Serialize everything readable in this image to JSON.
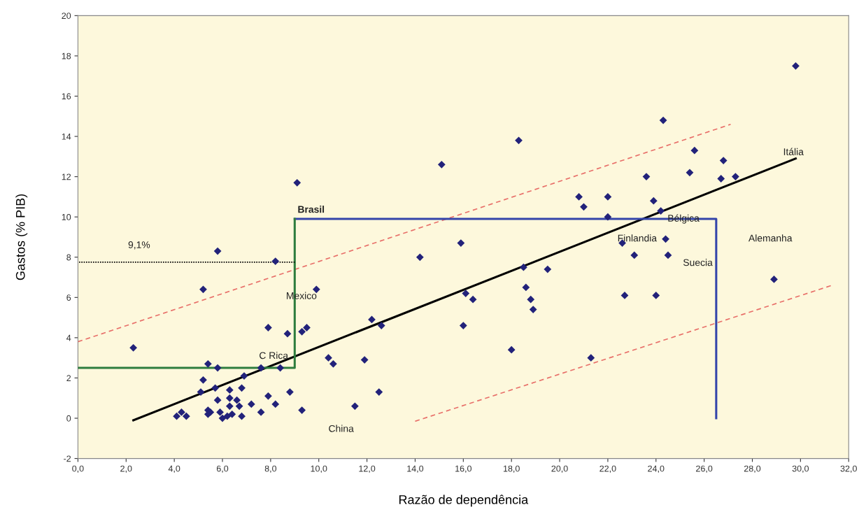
{
  "chart_data": {
    "type": "scatter",
    "xlabel": "Razão de dependência",
    "ylabel": "Gastos (% PIB)",
    "xlim": [
      0,
      32
    ],
    "ylim": [
      -2,
      20
    ],
    "xticks": [
      {
        "value": 0,
        "label": "0,0"
      },
      {
        "value": 2,
        "label": "2,0"
      },
      {
        "value": 4,
        "label": "4,0"
      },
      {
        "value": 6,
        "label": "6,0"
      },
      {
        "value": 8,
        "label": "8,0"
      },
      {
        "value": 10,
        "label": "10,0"
      },
      {
        "value": 12,
        "label": "12,0"
      },
      {
        "value": 14,
        "label": "14,0"
      },
      {
        "value": 16,
        "label": "16,0"
      },
      {
        "value": 18,
        "label": "18,0"
      },
      {
        "value": 20,
        "label": "20,0"
      },
      {
        "value": 22,
        "label": "22,0"
      },
      {
        "value": 24,
        "label": "24,0"
      },
      {
        "value": 26,
        "label": "26,0"
      },
      {
        "value": 28,
        "label": "28,0"
      },
      {
        "value": 30,
        "label": "30,0"
      },
      {
        "value": 32,
        "label": "32,0"
      }
    ],
    "yticks": [
      -2,
      0,
      2,
      4,
      6,
      8,
      10,
      12,
      14,
      16,
      18,
      20
    ],
    "legend": false,
    "series": [
      {
        "marker": "diamond",
        "color": "#22227a",
        "x": [
          2.3,
          5.8,
          8.2,
          5.2,
          9.9,
          7.9,
          8.7,
          9.3,
          9.5,
          5.4,
          5.8,
          7.6,
          8.4,
          10.4,
          10.6,
          5.2,
          5.1,
          5.7,
          6.3,
          6.8,
          6.9,
          5.8,
          6.3,
          6.6,
          6.3,
          6.7,
          7.2,
          7.9,
          8.2,
          8.8,
          9.3,
          7.6,
          4.1,
          4.3,
          4.5,
          5.4,
          5.5,
          5.4,
          5.9,
          6.0,
          6.2,
          6.4,
          6.8,
          9.1,
          15.1,
          18.3,
          15.9,
          14.2,
          18.5,
          19.5,
          18.6,
          16.1,
          16.4,
          18.8,
          18.9,
          12.2,
          12.6,
          16.0,
          18.0,
          11.9,
          12.5,
          11.5,
          29.8,
          24.3,
          25.6,
          26.8,
          23.6,
          25.4,
          26.7,
          27.3,
          20.8,
          21.0,
          22.0,
          23.9,
          22.0,
          24.2,
          22.6,
          24.4,
          23.1,
          24.5,
          28.9,
          22.7,
          24.0,
          21.3
        ],
        "values": [
          3.5,
          8.3,
          7.8,
          6.4,
          6.4,
          4.5,
          4.2,
          4.3,
          4.5,
          2.7,
          2.5,
          2.5,
          2.5,
          3.0,
          2.7,
          1.9,
          1.3,
          1.5,
          1.4,
          1.5,
          2.1,
          0.9,
          1.0,
          0.9,
          0.6,
          0.6,
          0.7,
          1.1,
          0.7,
          1.3,
          0.4,
          0.3,
          0.1,
          0.3,
          0.1,
          0.4,
          0.3,
          0.2,
          0.3,
          0.0,
          0.1,
          0.2,
          0.1,
          11.7,
          12.6,
          13.8,
          8.7,
          8.0,
          7.5,
          7.4,
          6.5,
          6.2,
          5.9,
          5.9,
          5.4,
          4.9,
          4.6,
          4.6,
          3.4,
          2.9,
          1.3,
          0.6,
          17.5,
          14.8,
          13.3,
          12.8,
          12.0,
          12.2,
          11.9,
          12.0,
          11.0,
          10.5,
          11.0,
          10.8,
          10.0,
          10.3,
          8.7,
          8.9,
          8.1,
          8.1,
          6.9,
          6.1,
          6.1,
          3.0
        ]
      },
      {
        "type": "line",
        "color": "#000000",
        "line_style": "solid",
        "x": [
          2.3,
          29.8
        ],
        "values": [
          -0.1,
          12.9
        ]
      },
      {
        "type": "line",
        "color": "#e8706a",
        "line_style": "dashed",
        "x": [
          0.0,
          27.1
        ],
        "values": [
          3.8,
          14.6
        ]
      },
      {
        "type": "line",
        "color": "#e8706a",
        "line_style": "dashed",
        "x": [
          14.0,
          31.3
        ],
        "values": [
          -0.15,
          6.6
        ]
      },
      {
        "type": "line",
        "color": "#3344aa",
        "line_style": "solid",
        "x": [
          9.0,
          26.5,
          26.5
        ],
        "values": [
          9.9,
          9.9,
          0.0
        ]
      },
      {
        "type": "line",
        "color": "#2e7d3e",
        "line_style": "solid",
        "x": [
          9.0,
          9.0,
          0.0
        ],
        "values": [
          9.9,
          2.5,
          2.5
        ]
      },
      {
        "type": "line",
        "color": "#000000",
        "line_style": "dotted",
        "x": [
          9.0,
          0.0
        ],
        "values": [
          7.75,
          7.75
        ]
      }
    ],
    "annotations": [
      "Brasil",
      "9,1%",
      "Mexico",
      "C Rica",
      "China",
      "Itália",
      "Bélgica",
      "Finlandia",
      "Alemanha",
      "Suecia"
    ]
  }
}
